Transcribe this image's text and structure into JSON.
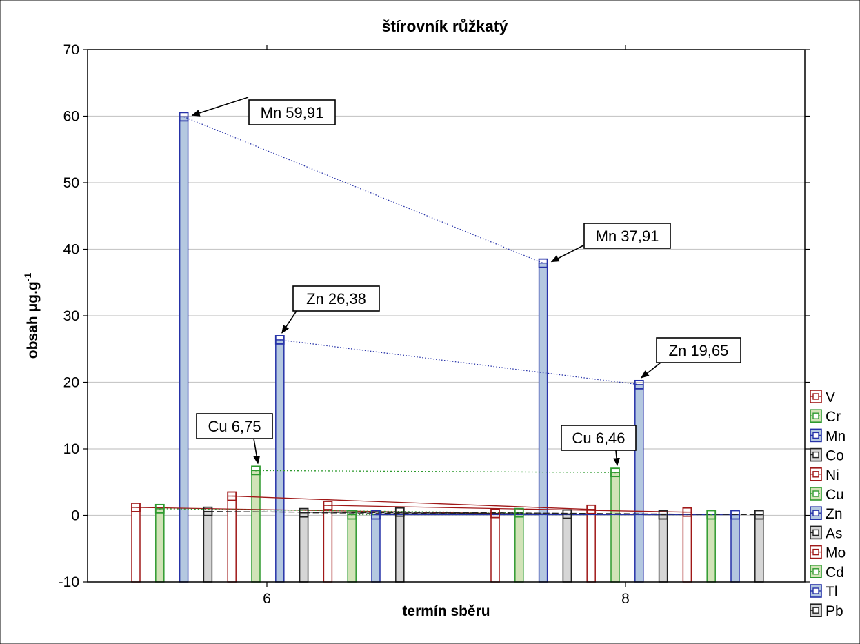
{
  "chart_data": {
    "type": "bar",
    "title": "štírovník růžkatý",
    "xlabel": "termín sběru",
    "ylabel": "obsah μg.g",
    "ylabel_superscript": "-1",
    "ylim": [
      -10,
      70
    ],
    "yticks": [
      "-10",
      "0",
      "10",
      "20",
      "30",
      "40",
      "50",
      "60",
      "70"
    ],
    "categories": [
      "6",
      "8"
    ],
    "grid": "horizontal",
    "legend_position": "right",
    "series": [
      {
        "name": "V",
        "color": "#a01818",
        "fill": "#ffffff",
        "marker": "hollow-square",
        "values": [
          1.2,
          0.3
        ]
      },
      {
        "name": "Cr",
        "color": "#2f9a2f",
        "fill": "#d2e3b8",
        "marker": "dotted-square",
        "values": [
          1.0,
          0.4
        ]
      },
      {
        "name": "Mn",
        "color": "#2632a8",
        "fill": "#b4c8e0",
        "marker": "hollow-square",
        "values": [
          59.91,
          37.91
        ]
      },
      {
        "name": "Co",
        "color": "#222222",
        "fill": "#d6d6d6",
        "marker": "dash-square",
        "values": [
          0.6,
          0.2
        ]
      },
      {
        "name": "Ni",
        "color": "#a01818",
        "fill": "#ffffff",
        "marker": "hollow-square",
        "values": [
          2.9,
          0.9
        ]
      },
      {
        "name": "Cu",
        "color": "#2f9a2f",
        "fill": "#d2e3b8",
        "marker": "dotted-square",
        "values": [
          6.75,
          6.46
        ]
      },
      {
        "name": "Zn",
        "color": "#2632a8",
        "fill": "#b4c8e0",
        "marker": "hollow-square",
        "values": [
          26.38,
          19.65
        ]
      },
      {
        "name": "As",
        "color": "#222222",
        "fill": "#d6d6d6",
        "marker": "dash-square",
        "values": [
          0.4,
          0.1
        ]
      },
      {
        "name": "Mo",
        "color": "#a01818",
        "fill": "#ffffff",
        "marker": "hollow-square",
        "values": [
          1.5,
          0.5
        ]
      },
      {
        "name": "Cd",
        "color": "#2f9a2f",
        "fill": "#d2e3b8",
        "marker": "dotted-square",
        "values": [
          0.1,
          0.1
        ]
      },
      {
        "name": "Tl",
        "color": "#2632a8",
        "fill": "#b4c8e0",
        "marker": "hollow-square",
        "values": [
          0.1,
          0.1
        ]
      },
      {
        "name": "Pb",
        "color": "#222222",
        "fill": "#d6d6d6",
        "marker": "dash-square",
        "values": [
          0.5,
          0.1
        ]
      }
    ],
    "annotations": [
      {
        "text": "Mn 59,91",
        "series": "Mn",
        "category": "6"
      },
      {
        "text": "Mn 37,91",
        "series": "Mn",
        "category": "8"
      },
      {
        "text": "Zn 26,38",
        "series": "Zn",
        "category": "6"
      },
      {
        "text": "Zn 19,65",
        "series": "Zn",
        "category": "8"
      },
      {
        "text": "Cu 6,75",
        "series": "Cu",
        "category": "6"
      },
      {
        "text": "Cu 6,46",
        "series": "Cu",
        "category": "8"
      }
    ]
  }
}
